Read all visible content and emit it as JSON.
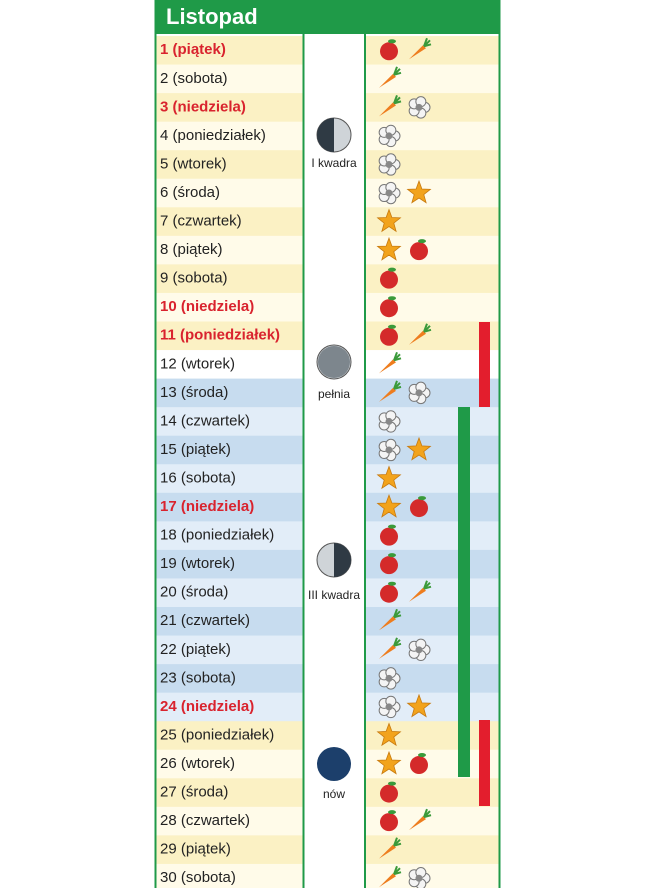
{
  "title": "Listopad",
  "days": [
    {
      "label": "1 (piątek)",
      "holiday": true
    },
    {
      "label": "2 (sobota)",
      "holiday": false
    },
    {
      "label": "3 (niedziela)",
      "holiday": true
    },
    {
      "label": "4 (poniedziałek)",
      "holiday": false
    },
    {
      "label": "5 (wtorek)",
      "holiday": false
    },
    {
      "label": "6 (środa)",
      "holiday": false
    },
    {
      "label": "7 (czwartek)",
      "holiday": false
    },
    {
      "label": "8 (piątek)",
      "holiday": false
    },
    {
      "label": "9 (sobota)",
      "holiday": false
    },
    {
      "label": "10 (niedziela)",
      "holiday": true
    },
    {
      "label": "11 (poniedziałek)",
      "holiday": true
    },
    {
      "label": "12 (wtorek)",
      "holiday": false
    },
    {
      "label": "13 (środa)",
      "holiday": false
    },
    {
      "label": "14 (czwartek)",
      "holiday": false
    },
    {
      "label": "15 (piątek)",
      "holiday": false
    },
    {
      "label": "16 (sobota)",
      "holiday": false
    },
    {
      "label": "17 (niedziela)",
      "holiday": true
    },
    {
      "label": "18 (poniedziałek)",
      "holiday": false
    },
    {
      "label": "19 (wtorek)",
      "holiday": false
    },
    {
      "label": "20 (środa)",
      "holiday": false
    },
    {
      "label": "21 (czwartek)",
      "holiday": false
    },
    {
      "label": "22 (piątek)",
      "holiday": false
    },
    {
      "label": "23 (sobota)",
      "holiday": false
    },
    {
      "label": "24 (niedziela)",
      "holiday": true
    },
    {
      "label": "25 (poniedziałek)",
      "holiday": false
    },
    {
      "label": "26 (wtorek)",
      "holiday": false
    },
    {
      "label": "27 (środa)",
      "holiday": false
    },
    {
      "label": "28 (czwartek)",
      "holiday": false
    },
    {
      "label": "29 (piątek)",
      "holiday": false
    },
    {
      "label": "30 (sobota)",
      "holiday": false
    }
  ],
  "moon_phases": [
    {
      "label": "I kwadra"
    },
    {
      "label": "pełnia"
    },
    {
      "label": "III kwadra"
    },
    {
      "label": "nów"
    }
  ]
}
